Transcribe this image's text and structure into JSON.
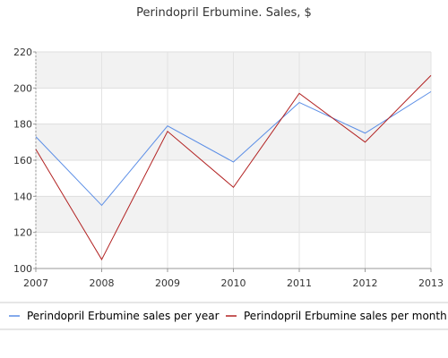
{
  "chart_data": {
    "type": "line",
    "title": "Perindopril Erbumine. Sales, $",
    "xlabel": "",
    "ylabel": "",
    "x": [
      "2007",
      "2008",
      "2009",
      "2010",
      "2011",
      "2012",
      "2013"
    ],
    "ylim": [
      100,
      220
    ],
    "yticks": [
      100,
      120,
      140,
      160,
      180,
      200,
      220
    ],
    "grid": true,
    "legend_position": "bottom",
    "series": [
      {
        "name": "Perindopril Erbumine sales per year",
        "color": "#5b8ee6",
        "values": [
          173,
          135,
          179,
          159,
          192,
          175,
          198
        ]
      },
      {
        "name": "Perindopril Erbumine sales per month",
        "color": "#b22222",
        "values": [
          166,
          105,
          176,
          145,
          197,
          170,
          207
        ]
      }
    ]
  }
}
